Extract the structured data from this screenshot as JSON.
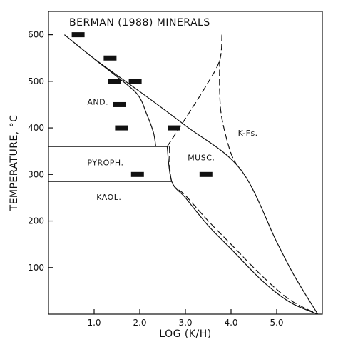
{
  "chart_data": {
    "type": "line",
    "title": "BERMAN (1988) MINERALS",
    "xlabel": "LOG (K/H)",
    "ylabel": "TEMPERATURE, °C",
    "xlim": [
      0,
      6.0
    ],
    "ylim": [
      0,
      650
    ],
    "x_ticks": [
      1.0,
      2.0,
      3.0,
      4.0,
      5.0
    ],
    "x_tick_labels": [
      "1.0",
      "2.0",
      "3.0",
      "4.0",
      "5.0"
    ],
    "y_ticks": [
      100,
      200,
      300,
      400,
      500,
      600
    ],
    "y_tick_labels": [
      "100",
      "200",
      "300",
      "400",
      "500",
      "600"
    ],
    "grid": false,
    "legend": "none",
    "field_labels": [
      {
        "text": "AND.",
        "x": 0.85,
        "y": 450
      },
      {
        "text": "K-Fs.",
        "x": 4.15,
        "y": 383
      },
      {
        "text": "MUSC.",
        "x": 3.05,
        "y": 330
      },
      {
        "text": "PYROPH.",
        "x": 0.85,
        "y": 320
      },
      {
        "text": "KAOL.",
        "x": 1.05,
        "y": 245
      }
    ],
    "series": [
      {
        "style": "solid",
        "points": [
          [
            0.35,
            600
          ],
          [
            1.05,
            545
          ],
          [
            2.0,
            478
          ],
          [
            3.0,
            405
          ],
          [
            4.2,
            312
          ],
          [
            5.0,
            155
          ],
          [
            5.4,
            80
          ],
          [
            5.9,
            0
          ]
        ]
      },
      {
        "style": "solid",
        "points": [
          [
            1.0,
            548
          ],
          [
            1.5,
            510
          ],
          [
            1.95,
            472
          ],
          [
            2.15,
            430
          ],
          [
            2.3,
            390
          ],
          [
            2.35,
            360
          ]
        ]
      },
      {
        "style": "solid",
        "points": [
          [
            0.0,
            360
          ],
          [
            2.35,
            360
          ],
          [
            2.6,
            360
          ]
        ]
      },
      {
        "style": "solid",
        "points": [
          [
            0.0,
            285
          ],
          [
            2.7,
            285
          ]
        ]
      },
      {
        "style": "solid",
        "points": [
          [
            2.6,
            360
          ],
          [
            2.7,
            285
          ],
          [
            3.0,
            250
          ],
          [
            3.5,
            190
          ],
          [
            4.0,
            140
          ],
          [
            4.7,
            70
          ],
          [
            5.3,
            25
          ],
          [
            5.9,
            0
          ]
        ]
      },
      {
        "style": "dashed",
        "points": [
          [
            2.6,
            360
          ],
          [
            3.0,
            420
          ],
          [
            3.45,
            490
          ],
          [
            3.75,
            545
          ],
          [
            3.8,
            600
          ]
        ]
      },
      {
        "style": "dashed",
        "points": [
          [
            3.75,
            545
          ],
          [
            3.75,
            480
          ],
          [
            3.8,
            420
          ],
          [
            4.0,
            345
          ],
          [
            4.2,
            310
          ]
        ]
      },
      {
        "style": "dashed",
        "points": [
          [
            2.65,
            360
          ],
          [
            2.7,
            285
          ],
          [
            3.0,
            255
          ],
          [
            3.5,
            200
          ],
          [
            4.0,
            150
          ],
          [
            4.7,
            80
          ],
          [
            5.3,
            30
          ],
          [
            5.9,
            0
          ]
        ]
      }
    ],
    "experimental_points": [
      [
        0.65,
        600
      ],
      [
        1.35,
        550
      ],
      [
        1.45,
        500
      ],
      [
        1.9,
        500
      ],
      [
        1.55,
        450
      ],
      [
        1.6,
        400
      ],
      [
        2.75,
        400
      ],
      [
        1.95,
        300
      ],
      [
        3.45,
        300
      ]
    ]
  }
}
